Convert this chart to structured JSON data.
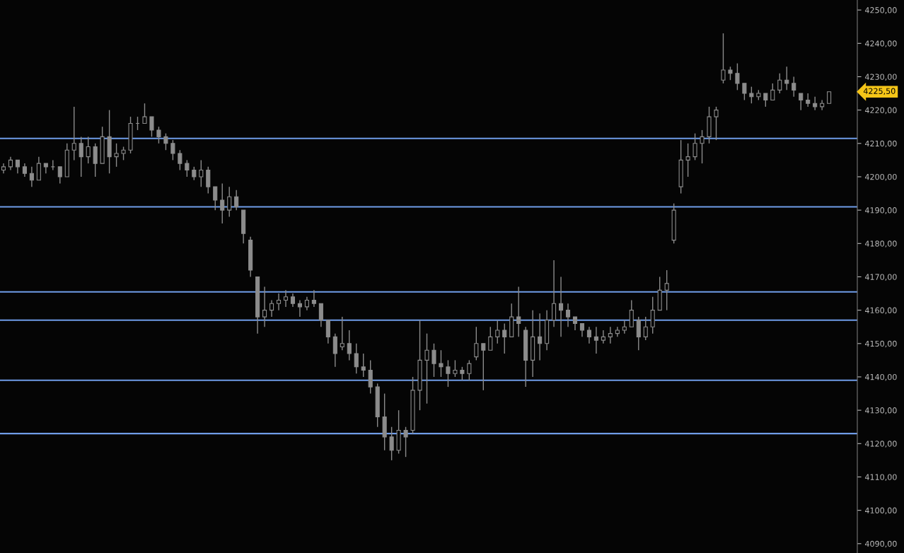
{
  "chart_data": {
    "type": "candlestick",
    "color": "#8c8c8c",
    "categories": [
      null,
      null,
      null,
      null,
      null,
      null,
      null,
      null,
      null,
      null,
      null,
      null,
      null,
      null,
      null,
      null,
      null,
      null,
      null,
      null,
      null,
      null,
      null,
      null,
      null,
      null,
      null,
      null,
      null,
      null,
      null,
      null,
      null,
      null,
      null,
      null,
      null,
      null,
      null,
      null,
      null,
      null,
      null,
      null,
      null,
      null,
      null,
      null,
      null,
      null,
      null,
      null,
      null,
      null,
      null,
      null,
      null,
      null,
      null,
      null,
      null,
      null,
      null,
      null,
      null,
      null,
      null,
      null,
      null,
      null,
      null,
      null,
      null,
      null,
      null,
      null,
      null,
      null,
      null,
      null,
      null,
      null,
      null,
      null,
      null,
      null,
      null,
      null,
      null,
      null,
      null,
      null,
      null,
      null,
      null,
      null,
      null,
      null,
      null,
      null,
      null,
      null,
      null,
      null,
      null,
      null,
      null,
      null,
      null,
      null,
      null,
      null,
      null,
      null,
      null,
      null,
      null,
      null
    ],
    "ohlc": [
      [
        4202,
        4204,
        4201,
        4203
      ],
      [
        4203,
        4206,
        4202,
        4205
      ],
      [
        4205,
        4205,
        4201,
        4203
      ],
      [
        4203,
        4204,
        4200,
        4201
      ],
      [
        4201,
        4203,
        4197,
        4199
      ],
      [
        4199,
        4206,
        4199,
        4204
      ],
      [
        4204,
        4204,
        4201,
        4203
      ],
      [
        4203,
        4205,
        4202,
        4203
      ],
      [
        4203,
        4203,
        4198,
        4200
      ],
      [
        4200,
        4210,
        4200,
        4208
      ],
      [
        4208,
        4221,
        4205,
        4210
      ],
      [
        4210,
        4212,
        4200,
        4206
      ],
      [
        4206,
        4212,
        4204,
        4209
      ],
      [
        4209,
        4210,
        4200,
        4204
      ],
      [
        4204,
        4215,
        4204,
        4212
      ],
      [
        4212,
        4220,
        4201,
        4206
      ],
      [
        4206,
        4210,
        4203,
        4207
      ],
      [
        4207,
        4209,
        4205,
        4208
      ],
      [
        4208,
        4218,
        4207,
        4216
      ],
      [
        4216,
        4218,
        4214,
        4216
      ],
      [
        4216,
        4222,
        4216,
        4218
      ],
      [
        4218,
        4218,
        4212,
        4214
      ],
      [
        4214,
        4215,
        4210,
        4212
      ],
      [
        4212,
        4213,
        4208,
        4210
      ],
      [
        4210,
        4211,
        4205,
        4207
      ],
      [
        4207,
        4208,
        4202,
        4204
      ],
      [
        4204,
        4205,
        4200,
        4202
      ],
      [
        4202,
        4203,
        4199,
        4200
      ],
      [
        4200,
        4205,
        4197,
        4202
      ],
      [
        4202,
        4203,
        4195,
        4197
      ],
      [
        4197,
        4197,
        4190,
        4193
      ],
      [
        4193,
        4198,
        4186,
        4190
      ],
      [
        4190,
        4197,
        4188,
        4194
      ],
      [
        4194,
        4196,
        4190,
        4191
      ],
      [
        4190,
        4190,
        4180,
        4183
      ],
      [
        4181,
        4182,
        4170,
        4172
      ],
      [
        4170,
        4170,
        4153,
        4158
      ],
      [
        4158,
        4167,
        4155,
        4160
      ],
      [
        4160,
        4163,
        4158,
        4162
      ],
      [
        4162,
        4165,
        4160,
        4163
      ],
      [
        4163,
        4166,
        4161,
        4164
      ],
      [
        4164,
        4165,
        4161,
        4162
      ],
      [
        4162,
        4163,
        4158,
        4161
      ],
      [
        4161,
        4164,
        4160,
        4163
      ],
      [
        4163,
        4166,
        4161,
        4162
      ],
      [
        4162,
        4162,
        4155,
        4157
      ],
      [
        4157,
        4157,
        4150,
        4152
      ],
      [
        4152,
        4153,
        4143,
        4147
      ],
      [
        4149,
        4158,
        4148,
        4150
      ],
      [
        4150,
        4154,
        4145,
        4147
      ],
      [
        4147,
        4150,
        4141,
        4143
      ],
      [
        4143,
        4147,
        4140,
        4142
      ],
      [
        4142,
        4145,
        4135,
        4137
      ],
      [
        4137,
        4138,
        4125,
        4128
      ],
      [
        4128,
        4135,
        4118,
        4122
      ],
      [
        4122,
        4125,
        4115,
        4118
      ],
      [
        4118,
        4130,
        4117,
        4124
      ],
      [
        4124,
        4125,
        4116,
        4122
      ],
      [
        4124,
        4140,
        4123,
        4136
      ],
      [
        4136,
        4157,
        4130,
        4145
      ],
      [
        4145,
        4153,
        4132,
        4148
      ],
      [
        4148,
        4150,
        4140,
        4144
      ],
      [
        4144,
        4148,
        4140,
        4143
      ],
      [
        4143,
        4145,
        4137,
        4141
      ],
      [
        4141,
        4145,
        4140,
        4142
      ],
      [
        4142,
        4143,
        4139,
        4141
      ],
      [
        4141,
        4145,
        4139,
        4144
      ],
      [
        4146,
        4155,
        4145,
        4150
      ],
      [
        4150,
        4150,
        4136,
        4148
      ],
      [
        4148,
        4155,
        4148,
        4152
      ],
      [
        4152,
        4157,
        4150,
        4154
      ],
      [
        4154,
        4156,
        4147,
        4152
      ],
      [
        4152,
        4162,
        4152,
        4158
      ],
      [
        4158,
        4167,
        4152,
        4156
      ],
      [
        4154,
        4155,
        4137,
        4145
      ],
      [
        4145,
        4160,
        4140,
        4152
      ],
      [
        4152,
        4159,
        4145,
        4150
      ],
      [
        4150,
        4160,
        4148,
        4157
      ],
      [
        4157,
        4175,
        4155,
        4162
      ],
      [
        4162,
        4170,
        4152,
        4160
      ],
      [
        4160,
        4162,
        4155,
        4158
      ],
      [
        4158,
        4158,
        4154,
        4156
      ],
      [
        4156,
        4156,
        4152,
        4154
      ],
      [
        4154,
        4155,
        4150,
        4152
      ],
      [
        4152,
        4155,
        4147,
        4151
      ],
      [
        4151,
        4154,
        4150,
        4152
      ],
      [
        4152,
        4155,
        4150,
        4153
      ],
      [
        4153,
        4155,
        4152,
        4154
      ],
      [
        4154,
        4157,
        4153,
        4155
      ],
      [
        4155,
        4163,
        4155,
        4160
      ],
      [
        4157,
        4158,
        4148,
        4152
      ],
      [
        4152,
        4158,
        4151,
        4155
      ],
      [
        4155,
        4164,
        4153,
        4160
      ],
      [
        4160,
        4170,
        4160,
        4166
      ],
      [
        4166,
        4172,
        4160,
        4168
      ],
      [
        4181,
        4192,
        4180,
        4190
      ],
      [
        4197,
        4211,
        4195,
        4205
      ],
      [
        4205,
        4210,
        4200,
        4206
      ],
      [
        4206,
        4213,
        4205,
        4210
      ],
      [
        4210,
        4214,
        4204,
        4212
      ],
      [
        4212,
        4221,
        4210,
        4218
      ],
      [
        4218,
        4221,
        4211,
        4220
      ],
      [
        4229,
        4243,
        4228,
        4232
      ],
      [
        4232,
        4233,
        4229,
        4231
      ],
      [
        4231,
        4234,
        4226,
        4228
      ],
      [
        4228,
        4228,
        4223,
        4225
      ],
      [
        4225,
        4227,
        4222,
        4224
      ],
      [
        4224,
        4226,
        4223,
        4225
      ],
      [
        4225,
        4225,
        4221,
        4223
      ],
      [
        4223,
        4228,
        4223,
        4226
      ],
      [
        4226,
        4231,
        4225,
        4229
      ],
      [
        4229,
        4233,
        4226,
        4228
      ],
      [
        4228,
        4230,
        4224,
        4226
      ],
      [
        4225,
        4225,
        4220,
        4223
      ],
      [
        4223,
        4225,
        4221,
        4222
      ],
      [
        4222,
        4224,
        4220,
        4221
      ],
      [
        4221,
        4223,
        4220,
        4222
      ],
      [
        4222,
        4225.5,
        4222,
        4225.5
      ]
    ],
    "ylim": [
      4087.2,
      4253
    ],
    "yticks": [
      {
        "value": 4090,
        "label": "4090,00"
      },
      {
        "value": 4100,
        "label": "4100,00"
      },
      {
        "value": 4110,
        "label": "4110,00"
      },
      {
        "value": 4120,
        "label": "4120,00"
      },
      {
        "value": 4130,
        "label": "4130,00"
      },
      {
        "value": 4140,
        "label": "4140,00"
      },
      {
        "value": 4150,
        "label": "4150,00"
      },
      {
        "value": 4160,
        "label": "4160,00"
      },
      {
        "value": 4170,
        "label": "4170,00"
      },
      {
        "value": 4180,
        "label": "4180,00"
      },
      {
        "value": 4190,
        "label": "4190,00"
      },
      {
        "value": 4200,
        "label": "4200,00"
      },
      {
        "value": 4210,
        "label": "4210,00"
      },
      {
        "value": 4220,
        "label": "4220,00"
      },
      {
        "value": 4230,
        "label": "4230,00"
      },
      {
        "value": 4240,
        "label": "4240,00"
      },
      {
        "value": 4250,
        "label": "4250,00"
      }
    ],
    "ref_lines": [
      {
        "axis": "y",
        "value": 4191,
        "color": "#6f9ce8"
      },
      {
        "axis": "y",
        "value": 4157,
        "color": "#6f9ce8"
      },
      {
        "axis": "y",
        "value": 4139,
        "color": "#6f9ce8"
      },
      {
        "axis": "y",
        "value": 4123,
        "color": "#6f9ce8"
      },
      {
        "axis": "y",
        "value": 4165.5,
        "color": "#6f9ce8"
      },
      {
        "axis": "y",
        "value": 4211.5,
        "color": "#6f9ce8"
      }
    ],
    "annotations": [
      "4225,50"
    ],
    "grid": false,
    "legend": false
  }
}
